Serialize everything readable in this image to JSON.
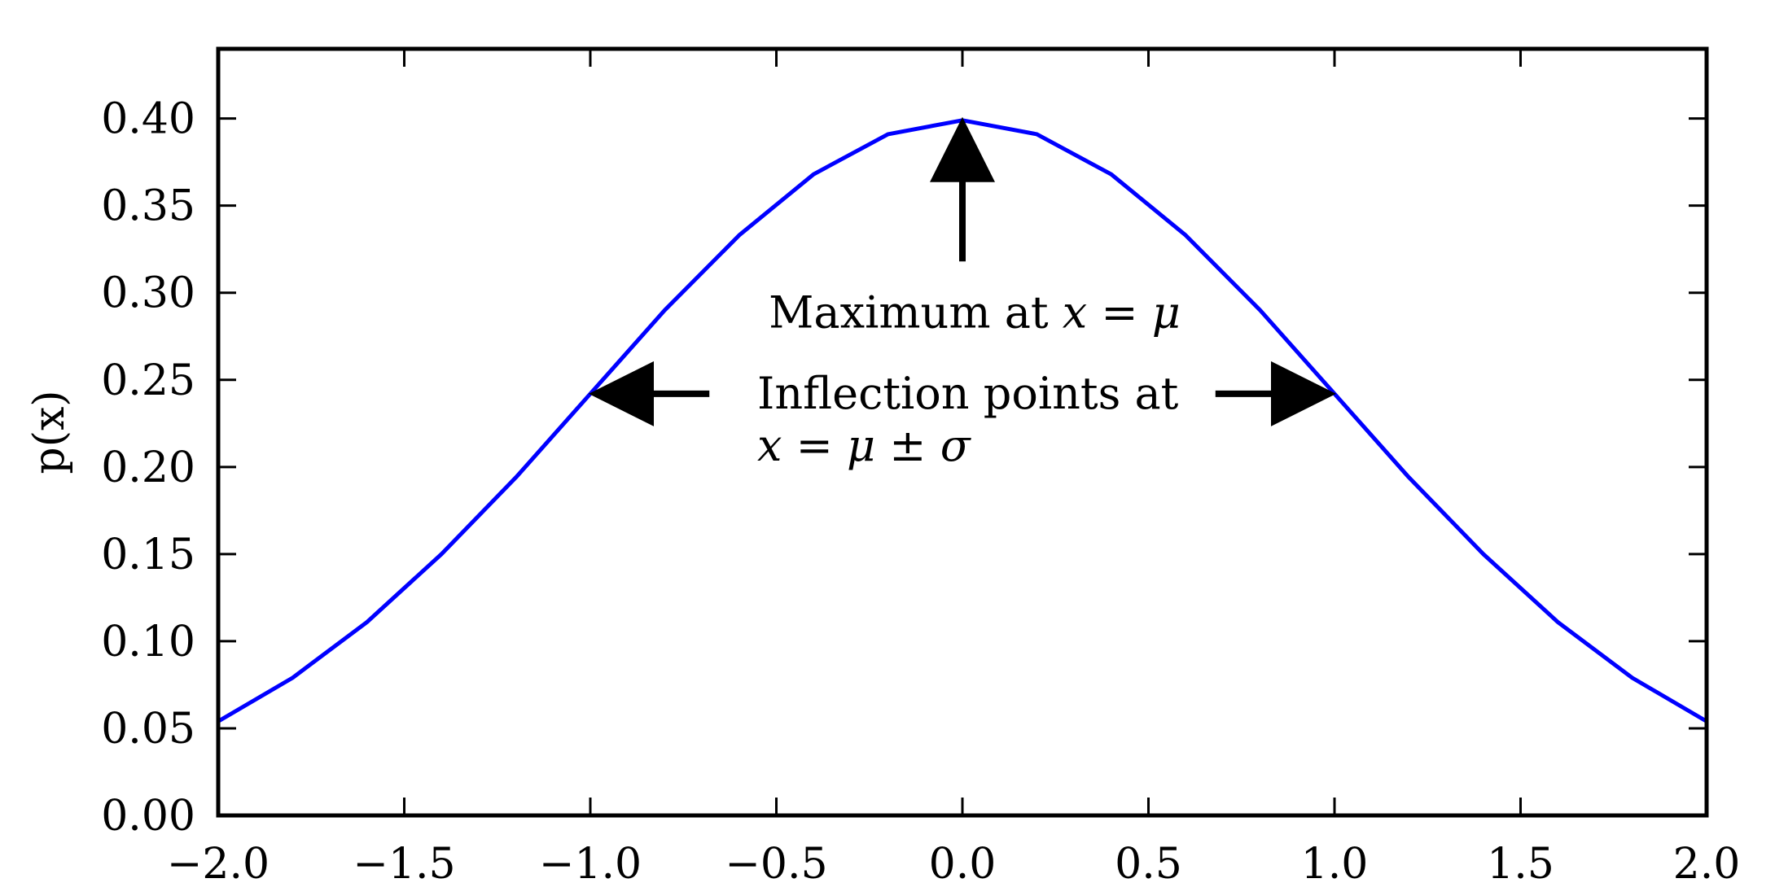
{
  "chart_data": {
    "type": "line",
    "title": "",
    "xlabel": "",
    "ylabel": "p(x)",
    "xlim": [
      -2.0,
      2.0
    ],
    "ylim": [
      0.0,
      0.44
    ],
    "grid": false,
    "x_ticks": [
      -2.0,
      -1.5,
      -1.0,
      -0.5,
      0.0,
      0.5,
      1.0,
      1.5,
      2.0
    ],
    "x_tick_labels": [
      "−2.0",
      "−1.5",
      "−1.0",
      "−0.5",
      "0.0",
      "0.5",
      "1.0",
      "1.5",
      "2.0"
    ],
    "y_ticks": [
      0.0,
      0.05,
      0.1,
      0.15,
      0.2,
      0.25,
      0.3,
      0.35,
      0.4
    ],
    "y_tick_labels": [
      "0.00",
      "0.05",
      "0.10",
      "0.15",
      "0.20",
      "0.25",
      "0.30",
      "0.35",
      "0.40"
    ],
    "series": [
      {
        "color": "#0000ff",
        "x": [
          -2.0,
          -1.8,
          -1.6,
          -1.4,
          -1.2,
          -1.0,
          -0.8,
          -0.6,
          -0.4,
          -0.2,
          0.0,
          0.2,
          0.4,
          0.6,
          0.8,
          1.0,
          1.2,
          1.4,
          1.6,
          1.8,
          2.0
        ],
        "y": [
          0.054,
          0.079,
          0.111,
          0.15,
          0.194,
          0.242,
          0.29,
          0.333,
          0.368,
          0.391,
          0.399,
          0.391,
          0.368,
          0.333,
          0.29,
          0.242,
          0.194,
          0.15,
          0.111,
          0.079,
          0.054
        ]
      }
    ],
    "annotations": {
      "maximum": {
        "text_prefix": "Maximum at ",
        "math": "x = μ",
        "target_x": 0.0,
        "target_y": 0.399,
        "label_x": 0.0,
        "label_y": 0.32
      },
      "inflection": {
        "line1": "Inflection points at",
        "math": "x = μ ± σ",
        "targets": [
          {
            "x": -1.0,
            "y": 0.242
          },
          {
            "x": 1.0,
            "y": 0.242
          }
        ],
        "left_tail_x": -0.68,
        "right_tail_x": 0.68
      }
    }
  }
}
